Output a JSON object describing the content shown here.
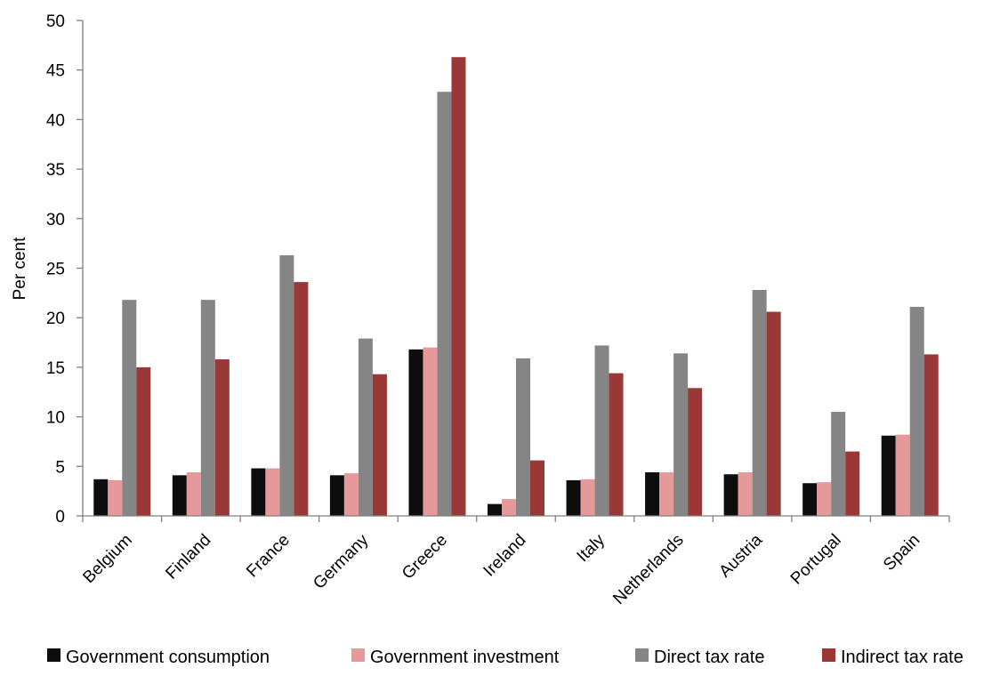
{
  "chart_data": {
    "type": "bar",
    "title": "",
    "xlabel": "",
    "ylabel": "Per cent",
    "ylim": [
      0,
      50
    ],
    "yticks": [
      0,
      5,
      10,
      15,
      20,
      25,
      30,
      35,
      40,
      45,
      50
    ],
    "grid": false,
    "legend_position": "bottom",
    "categories": [
      "Belgium",
      "Finland",
      "France",
      "Germany",
      "Greece",
      "Ireland",
      "Italy",
      "Netherlands",
      "Austria",
      "Portugal",
      "Spain"
    ],
    "series": [
      {
        "name": "Government consumption",
        "color": "#0d0d0d",
        "values": [
          3.7,
          4.1,
          4.8,
          4.1,
          16.8,
          1.2,
          3.6,
          4.4,
          4.2,
          3.3,
          8.1
        ]
      },
      {
        "name": "Government investment",
        "color": "#e6999b",
        "values": [
          3.6,
          4.4,
          4.8,
          4.3,
          17.0,
          1.7,
          3.7,
          4.4,
          4.4,
          3.4,
          8.2
        ]
      },
      {
        "name": "Direct tax rate",
        "color": "#858585",
        "values": [
          21.8,
          21.8,
          26.3,
          17.9,
          42.8,
          15.9,
          17.2,
          16.4,
          22.8,
          10.5,
          21.1
        ]
      },
      {
        "name": "Indirect tax rate",
        "color": "#993837",
        "values": [
          15.0,
          15.8,
          23.6,
          14.3,
          46.3,
          5.6,
          14.4,
          12.9,
          20.6,
          6.5,
          16.3
        ]
      }
    ]
  }
}
